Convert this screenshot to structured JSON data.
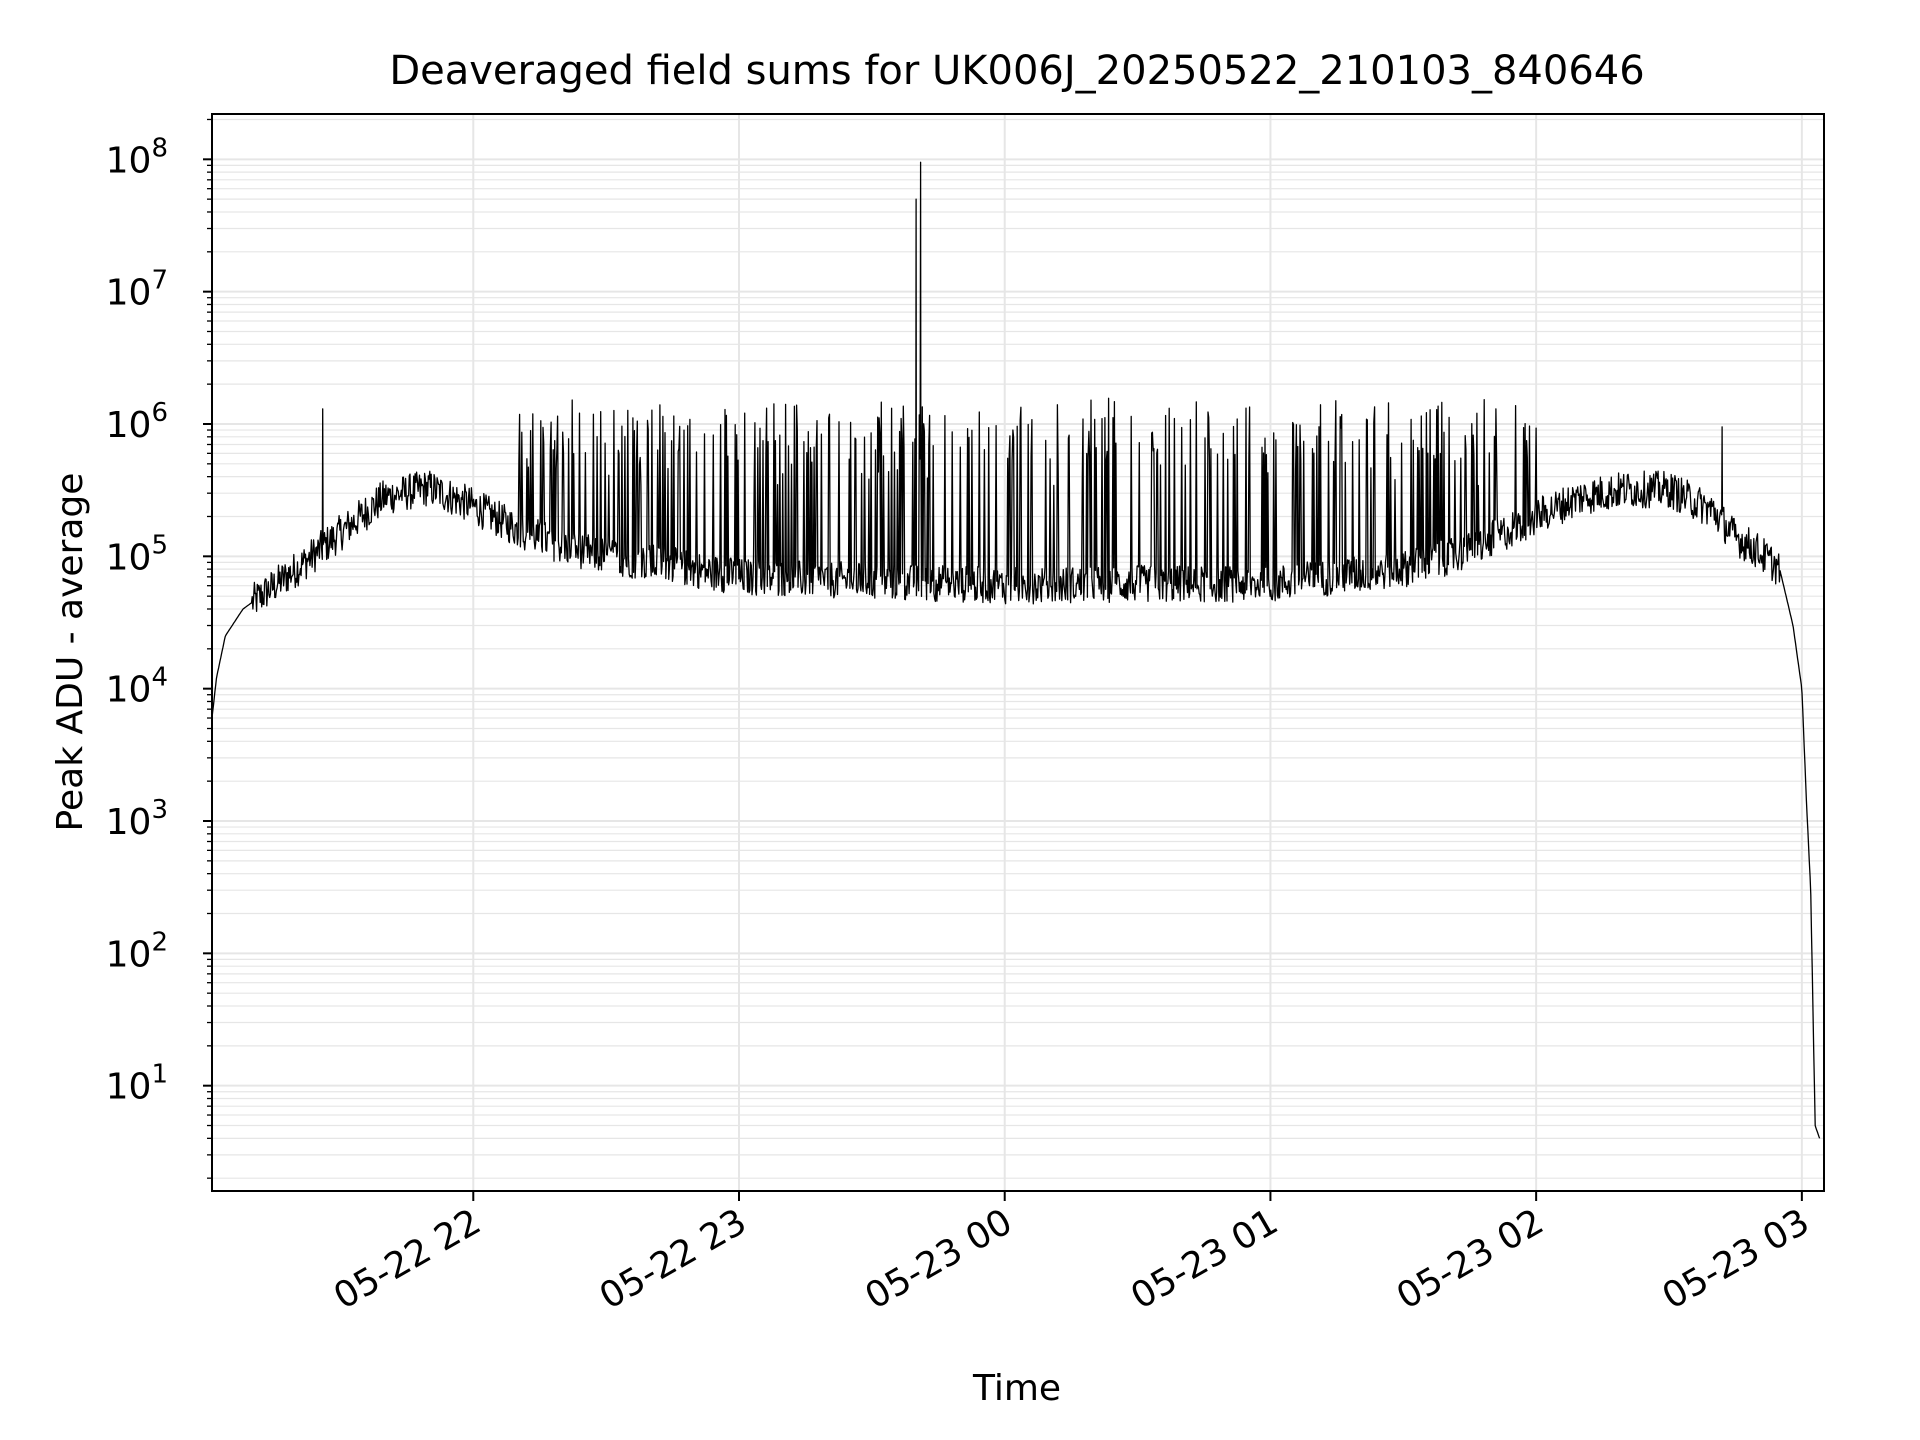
{
  "chart_data": {
    "type": "line",
    "title": "Deaveraged field sums for UK006J_20250522_210103_840646",
    "xlabel": "Time",
    "ylabel": "Peak ADU - average",
    "yscale": "log",
    "ylim": [
      1.6,
      220000000.0
    ],
    "xlim": [
      "2025-05-22 21:01",
      "2025-05-23 03:05"
    ],
    "grid": true,
    "grid_minor": true,
    "line_color": "#000000",
    "grid_color": "#e6e6e6",
    "x_ticks": [
      {
        "value": "2025-05-22 22:00",
        "label": "05-22 22"
      },
      {
        "value": "2025-05-22 23:00",
        "label": "05-22 23"
      },
      {
        "value": "2025-05-23 00:00",
        "label": "05-23 00"
      },
      {
        "value": "2025-05-23 01:00",
        "label": "05-23 01"
      },
      {
        "value": "2025-05-23 02:00",
        "label": "05-23 02"
      },
      {
        "value": "2025-05-23 03:00",
        "label": "05-23 03"
      }
    ],
    "y_ticks": [
      {
        "value": 10,
        "base": "10",
        "exp": "1"
      },
      {
        "value": 100,
        "base": "10",
        "exp": "2"
      },
      {
        "value": 1000,
        "base": "10",
        "exp": "3"
      },
      {
        "value": 10000,
        "base": "10",
        "exp": "4"
      },
      {
        "value": 100000,
        "base": "10",
        "exp": "5"
      },
      {
        "value": 1000000,
        "base": "10",
        "exp": "6"
      },
      {
        "value": 10000000,
        "base": "10",
        "exp": "7"
      },
      {
        "value": 100000000,
        "base": "10",
        "exp": "8"
      }
    ],
    "baseline": {
      "time": [
        "2025-05-22 21:01",
        "2025-05-22 21:02",
        "2025-05-22 21:04",
        "2025-05-22 21:08",
        "2025-05-22 21:12",
        "2025-05-22 21:20",
        "2025-05-22 21:30",
        "2025-05-22 21:40",
        "2025-05-22 21:50",
        "2025-05-22 22:00",
        "2025-05-22 22:10",
        "2025-05-22 22:20",
        "2025-05-22 22:30",
        "2025-05-22 22:45",
        "2025-05-22 23:00",
        "2025-05-22 23:30",
        "2025-05-23 00:00",
        "2025-05-23 00:30",
        "2025-05-23 01:00",
        "2025-05-23 01:30",
        "2025-05-23 01:45",
        "2025-05-23 02:00",
        "2025-05-23 02:10",
        "2025-05-23 02:20",
        "2025-05-23 02:30",
        "2025-05-23 02:40",
        "2025-05-23 02:45",
        "2025-05-23 02:50",
        "2025-05-23 02:55",
        "2025-05-23 02:58",
        "2025-05-23 03:00",
        "03:01",
        "03:02",
        "03:03",
        "03:04"
      ],
      "values": [
        6000,
        12000,
        25000,
        40000,
        50000,
        80000,
        150000,
        280000,
        330000,
        240000,
        160000,
        120000,
        100000,
        85000,
        70000,
        65000,
        60000,
        62000,
        62000,
        80000,
        110000,
        200000,
        280000,
        320000,
        320000,
        220000,
        140000,
        110000,
        80000,
        30000,
        10000,
        1500,
        300,
        5,
        4
      ]
    },
    "notable_peaks": [
      {
        "time": "2025-05-22 23:41",
        "value": 95000000
      },
      {
        "time": "2025-05-22 23:40",
        "value": 50000000
      },
      {
        "time": "2025-05-22 21:26",
        "value": 1300000
      },
      {
        "time": "2025-05-23 02:42",
        "value": 950000
      }
    ],
    "spike_range": [
      1000000,
      1600000
    ]
  }
}
